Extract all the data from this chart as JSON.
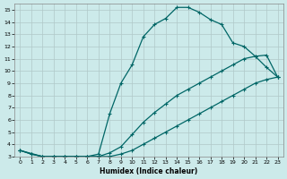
{
  "xlabel": "Humidex (Indice chaleur)",
  "bg_color": "#cceaea",
  "line_color": "#006666",
  "grid_color": "#b0c8c8",
  "xlim": [
    -0.5,
    23.5
  ],
  "ylim": [
    3,
    15.5
  ],
  "xticks": [
    0,
    1,
    2,
    3,
    4,
    5,
    6,
    7,
    8,
    9,
    10,
    11,
    12,
    13,
    14,
    15,
    16,
    17,
    18,
    19,
    20,
    21,
    22,
    23
  ],
  "yticks": [
    3,
    4,
    5,
    6,
    7,
    8,
    9,
    10,
    11,
    12,
    13,
    14,
    15
  ],
  "line1_x": [
    0,
    1,
    2,
    3,
    4,
    5,
    6,
    7,
    8,
    9,
    10,
    11,
    12,
    13,
    14,
    15,
    16,
    17,
    18,
    19,
    20,
    21,
    22,
    23
  ],
  "line1_y": [
    3.5,
    3.2,
    3.0,
    3.0,
    3.0,
    3.0,
    3.0,
    3.0,
    3.0,
    3.2,
    3.5,
    4.0,
    4.5,
    5.0,
    5.5,
    6.0,
    6.5,
    7.0,
    7.5,
    8.0,
    8.5,
    9.0,
    9.3,
    9.5
  ],
  "line2_x": [
    0,
    1,
    2,
    3,
    4,
    5,
    6,
    7,
    8,
    9,
    10,
    11,
    12,
    13,
    14,
    15,
    16,
    17,
    18,
    19,
    20,
    21,
    22,
    23
  ],
  "line2_y": [
    3.5,
    3.2,
    3.0,
    3.0,
    3.0,
    3.0,
    3.0,
    3.0,
    3.3,
    3.8,
    4.8,
    5.8,
    6.6,
    7.3,
    8.0,
    8.5,
    9.0,
    9.5,
    10.0,
    10.5,
    11.0,
    11.2,
    11.3,
    9.5
  ],
  "line3_x": [
    0,
    2,
    3,
    4,
    5,
    6,
    7,
    8,
    9,
    10,
    11,
    12,
    13,
    14,
    15,
    16,
    17,
    18,
    19,
    20,
    21,
    22,
    23
  ],
  "line3_y": [
    3.5,
    3.0,
    3.0,
    3.0,
    3.0,
    3.0,
    3.2,
    6.5,
    9.0,
    10.5,
    12.8,
    13.8,
    14.3,
    15.2,
    15.2,
    14.8,
    14.2,
    13.8,
    12.3,
    12.0,
    11.2,
    10.3,
    9.5
  ]
}
